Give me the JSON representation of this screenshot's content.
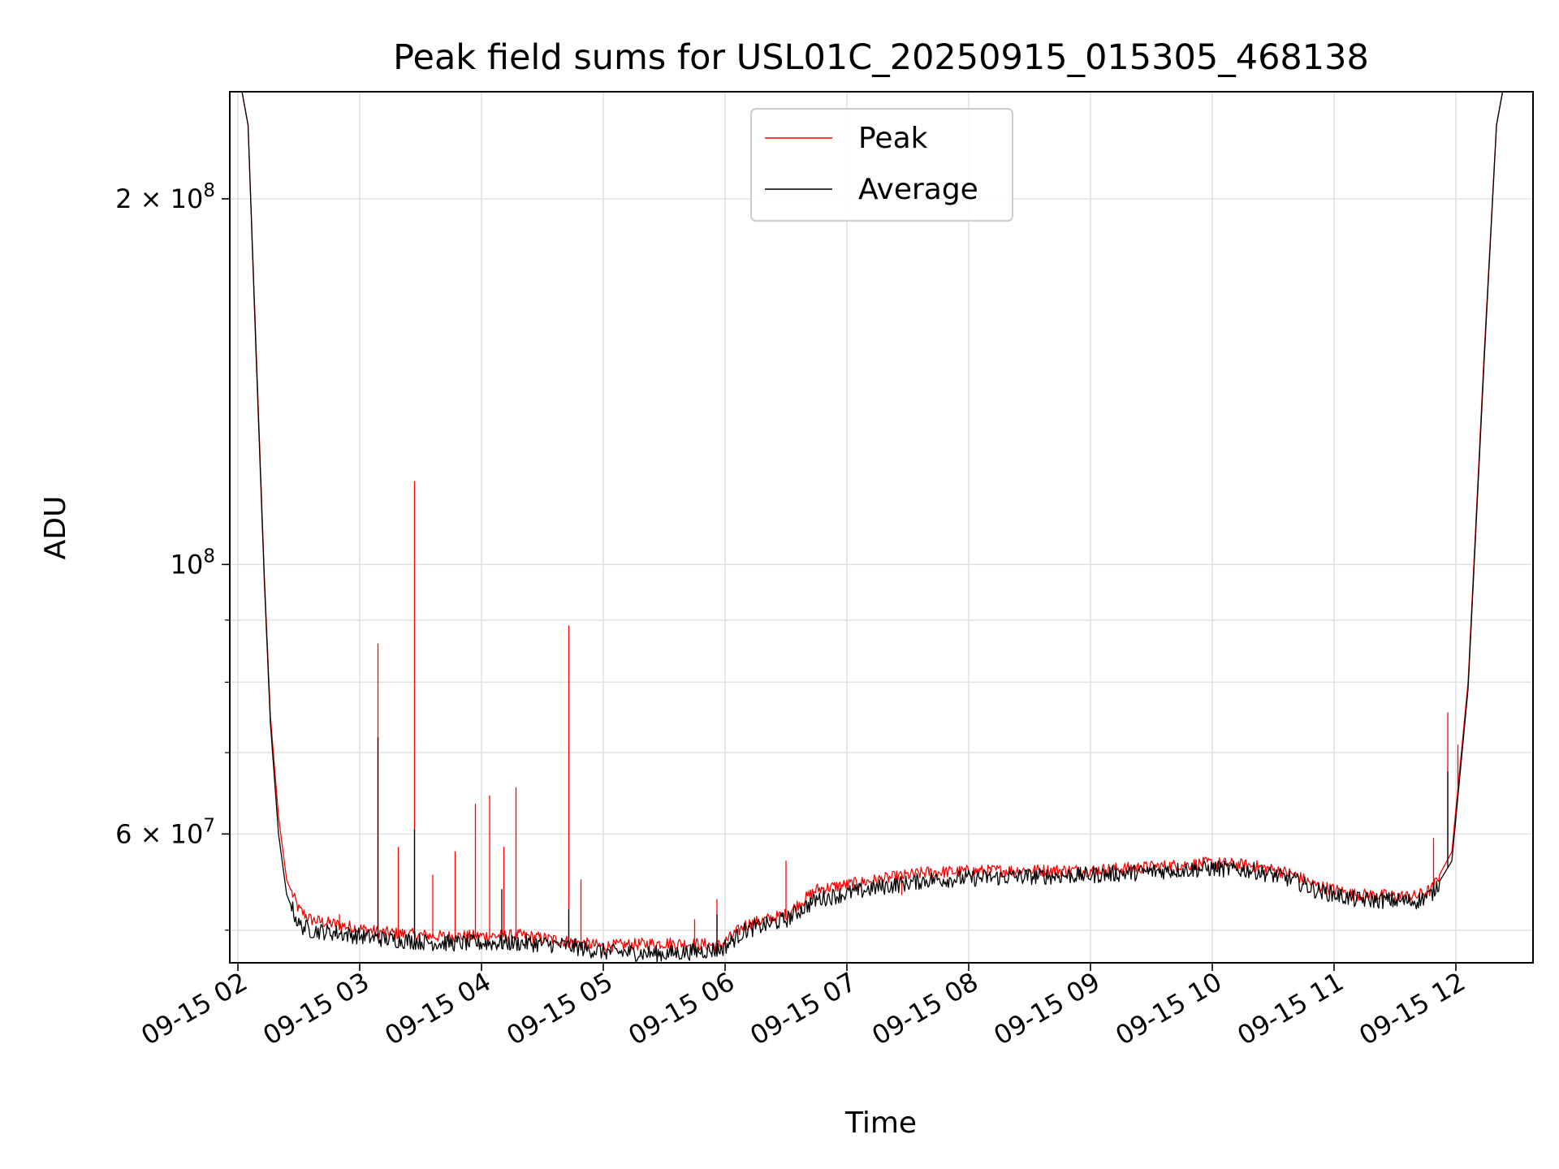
{
  "chart_data": {
    "type": "line",
    "title": "Peak field sums for USL01C_20250915_015305_468138",
    "xlabel": "Time",
    "ylabel": "ADU",
    "y_scale": "log",
    "ylim": [
      47000000,
      245000000
    ],
    "xlim": [
      "2025-09-15 01:56",
      "2025-09-15 12:38"
    ],
    "grid": true,
    "legend": {
      "placement": "upper-center"
    },
    "x_ticks": [
      "09-15 02",
      "09-15 03",
      "09-15 04",
      "09-15 05",
      "09-15 06",
      "09-15 07",
      "09-15 08",
      "09-15 09",
      "09-15 10",
      "09-15 11",
      "09-15 12"
    ],
    "y_tick_labels": [
      {
        "value": 200000000,
        "mantissa": "2",
        "exponent": "8"
      },
      {
        "value": 100000000,
        "mantissa": "",
        "exponent": "8"
      },
      {
        "value": 60000000,
        "mantissa": "6",
        "exponent": "7"
      }
    ],
    "y_minor_ticks": [
      50000000,
      70000000,
      80000000,
      90000000
    ],
    "series": [
      {
        "name": "Peak",
        "color": "#ff0000",
        "points": [
          [
            "2025-09-15 02:02",
            245000000
          ],
          [
            "2025-09-15 02:05",
            230000000
          ],
          [
            "2025-09-15 02:09",
            150000000
          ],
          [
            "2025-09-15 02:13",
            98000000
          ],
          [
            "2025-09-15 02:16",
            75000000
          ],
          [
            "2025-09-15 02:20",
            62000000
          ],
          [
            "2025-09-15 02:24",
            55000000
          ],
          [
            "2025-09-15 02:30",
            52000000
          ],
          [
            "2025-09-15 02:36",
            51000000
          ],
          [
            "2025-09-15 02:50",
            50500000
          ],
          [
            "2025-09-15 03:10",
            49800000
          ],
          [
            "2025-09-15 03:40",
            49400000
          ],
          [
            "2025-09-15 04:20",
            49500000
          ],
          [
            "2025-09-15 04:40",
            49000000
          ],
          [
            "2025-09-15 05:00",
            48500000
          ],
          [
            "2025-09-15 05:30",
            48800000
          ],
          [
            "2025-09-15 05:58",
            48600000
          ],
          [
            "2025-09-15 06:10",
            50500000
          ],
          [
            "2025-09-15 06:30",
            51500000
          ],
          [
            "2025-09-15 06:45",
            54000000
          ],
          [
            "2025-09-15 07:15",
            55000000
          ],
          [
            "2025-09-15 07:40",
            55800000
          ],
          [
            "2025-09-15 08:20",
            56000000
          ],
          [
            "2025-09-15 09:00",
            56000000
          ],
          [
            "2025-09-15 09:40",
            56500000
          ],
          [
            "2025-09-15 10:00",
            56800000
          ],
          [
            "2025-09-15 10:20",
            56500000
          ],
          [
            "2025-09-15 10:40",
            55600000
          ],
          [
            "2025-09-15 10:50",
            54500000
          ],
          [
            "2025-09-15 11:10",
            53500000
          ],
          [
            "2025-09-15 11:40",
            53300000
          ],
          [
            "2025-09-15 11:48",
            54000000
          ],
          [
            "2025-09-15 11:58",
            58000000
          ],
          [
            "2025-09-15 12:06",
            80000000
          ],
          [
            "2025-09-15 12:14",
            150000000
          ],
          [
            "2025-09-15 12:20",
            230000000
          ],
          [
            "2025-09-15 12:23",
            245000000
          ]
        ],
        "spikes": [
          [
            "2025-09-15 02:50",
            51500000
          ],
          [
            "2025-09-15 03:09",
            86000000
          ],
          [
            "2025-09-15 03:19",
            58500000
          ],
          [
            "2025-09-15 03:27",
            117000000
          ],
          [
            "2025-09-15 03:36",
            55500000
          ],
          [
            "2025-09-15 03:47",
            58000000
          ],
          [
            "2025-09-15 03:57",
            63500000
          ],
          [
            "2025-09-15 04:04",
            64500000
          ],
          [
            "2025-09-15 04:11",
            58500000
          ],
          [
            "2025-09-15 04:17",
            65500000
          ],
          [
            "2025-09-15 04:43",
            89000000
          ],
          [
            "2025-09-15 04:49",
            55000000
          ],
          [
            "2025-09-15 05:45",
            51000000
          ],
          [
            "2025-09-15 05:56",
            53000000
          ],
          [
            "2025-09-15 06:30",
            57000000
          ],
          [
            "2025-09-15 07:27",
            53500000
          ],
          [
            "2025-09-15 11:49",
            59500000
          ],
          [
            "2025-09-15 11:56",
            75500000
          ],
          [
            "2025-09-15 12:01",
            71000000
          ]
        ]
      },
      {
        "name": "Average",
        "color": "#000000",
        "points": [
          [
            "2025-09-15 02:02",
            245000000
          ],
          [
            "2025-09-15 02:05",
            230000000
          ],
          [
            "2025-09-15 02:09",
            148000000
          ],
          [
            "2025-09-15 02:13",
            97000000
          ],
          [
            "2025-09-15 02:16",
            74000000
          ],
          [
            "2025-09-15 02:20",
            60000000
          ],
          [
            "2025-09-15 02:24",
            53500000
          ],
          [
            "2025-09-15 02:30",
            50500000
          ],
          [
            "2025-09-15 02:36",
            50000000
          ],
          [
            "2025-09-15 02:50",
            49700000
          ],
          [
            "2025-09-15 03:10",
            49200000
          ],
          [
            "2025-09-15 03:40",
            48800000
          ],
          [
            "2025-09-15 04:20",
            48800000
          ],
          [
            "2025-09-15 04:40",
            48600000
          ],
          [
            "2025-09-15 05:00",
            48000000
          ],
          [
            "2025-09-15 05:30",
            47800000
          ],
          [
            "2025-09-15 05:58",
            48200000
          ],
          [
            "2025-09-15 06:10",
            50000000
          ],
          [
            "2025-09-15 06:30",
            51000000
          ],
          [
            "2025-09-15 06:45",
            53000000
          ],
          [
            "2025-09-15 07:15",
            54200000
          ],
          [
            "2025-09-15 07:40",
            55000000
          ],
          [
            "2025-09-15 08:20",
            55300000
          ],
          [
            "2025-09-15 09:00",
            55500000
          ],
          [
            "2025-09-15 09:40",
            56000000
          ],
          [
            "2025-09-15 10:00",
            56200000
          ],
          [
            "2025-09-15 10:20",
            56000000
          ],
          [
            "2025-09-15 10:40",
            55000000
          ],
          [
            "2025-09-15 10:50",
            54000000
          ],
          [
            "2025-09-15 11:10",
            53000000
          ],
          [
            "2025-09-15 11:40",
            52800000
          ],
          [
            "2025-09-15 11:48",
            53500000
          ],
          [
            "2025-09-15 11:58",
            57000000
          ],
          [
            "2025-09-15 12:06",
            79000000
          ],
          [
            "2025-09-15 12:14",
            148000000
          ],
          [
            "2025-09-15 12:20",
            230000000
          ],
          [
            "2025-09-15 12:23",
            245000000
          ]
        ],
        "spikes": [
          [
            "2025-09-15 03:09",
            72000000
          ],
          [
            "2025-09-15 03:27",
            60500000
          ],
          [
            "2025-09-15 04:10",
            54000000
          ],
          [
            "2025-09-15 04:43",
            52000000
          ],
          [
            "2025-09-15 05:56",
            51500000
          ],
          [
            "2025-09-15 11:56",
            67500000
          ]
        ]
      }
    ]
  }
}
